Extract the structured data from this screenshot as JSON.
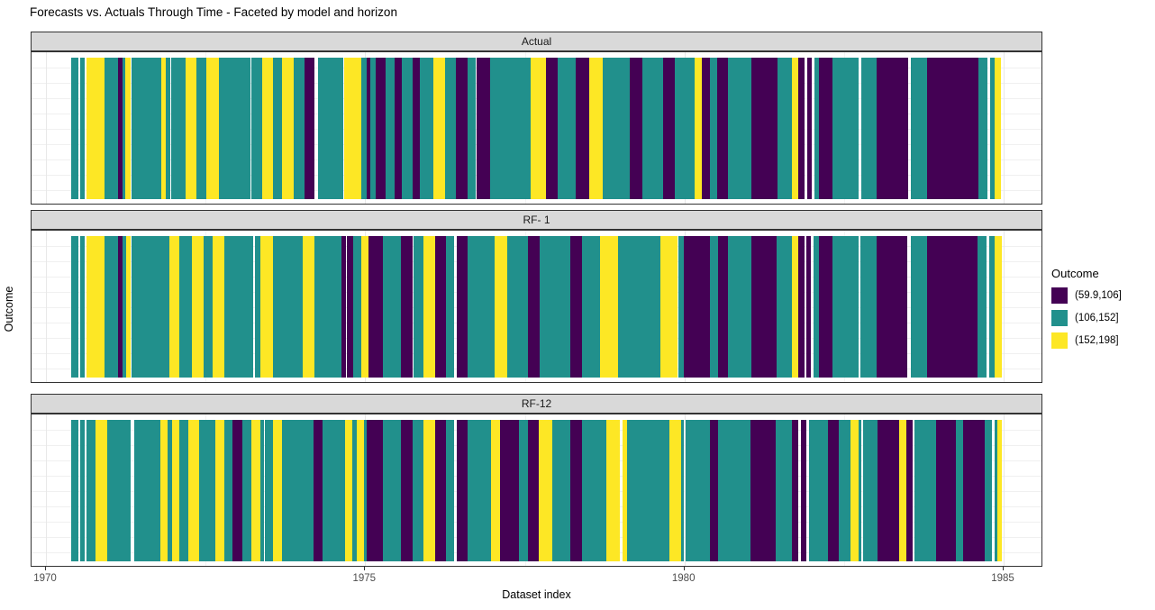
{
  "title": "Forecasts vs. Actuals Through Time - Faceted by model and horizon",
  "x_axis": {
    "label": "Dataset index",
    "ticks": [
      1970,
      1975,
      1980,
      1985
    ],
    "range": [
      1969.79,
      1985.62
    ]
  },
  "y_axis": {
    "label": "Outcome"
  },
  "legend": {
    "title": "Outcome",
    "entries": [
      {
        "key": "P",
        "label": "(59.9,106]",
        "color": "#440154"
      },
      {
        "key": "T",
        "label": "(106,152]",
        "color": "#21908C"
      },
      {
        "key": "Y",
        "label": "(152,198]",
        "color": "#FDE725"
      }
    ]
  },
  "style_colors": {
    "strip_bg": "#D9D9D9",
    "panel_border": "#333333",
    "grid_major": "#E8E8E8",
    "grid_minor": "#F4F4F4",
    "axis_text": "#4D4D4D"
  },
  "chart_data": {
    "type": "heatmap",
    "description": "Tile/strip timeline of binned Outcome values, faceted by model-horizon; each segment is [start_year, end_year, bin_key]",
    "x_domain": [
      1970.4,
      1985.0
    ],
    "bins": {
      "P": "(59.9,106]",
      "T": "(106,152]",
      "Y": "(152,198]"
    },
    "grid": "on",
    "legend_position": "right",
    "facets": [
      {
        "label": "Actual",
        "segments": [
          [
            1970.4,
            1970.51,
            "T"
          ],
          [
            1970.54,
            1970.61,
            "T"
          ],
          [
            1970.64,
            1970.92,
            "Y"
          ],
          [
            1970.92,
            1971.13,
            "T"
          ],
          [
            1971.13,
            1971.2,
            "P"
          ],
          [
            1971.2,
            1971.24,
            "T"
          ],
          [
            1971.24,
            1971.33,
            "Y"
          ],
          [
            1971.34,
            1971.81,
            "T"
          ],
          [
            1971.81,
            1971.88,
            "Y"
          ],
          [
            1971.88,
            1971.95,
            "T"
          ],
          [
            1971.96,
            1972.19,
            "T"
          ],
          [
            1972.19,
            1972.36,
            "Y"
          ],
          [
            1972.36,
            1972.51,
            "T"
          ],
          [
            1972.51,
            1972.71,
            "Y"
          ],
          [
            1972.71,
            1973.2,
            "T"
          ],
          [
            1973.22,
            1973.39,
            "T"
          ],
          [
            1973.39,
            1973.56,
            "Y"
          ],
          [
            1973.56,
            1973.7,
            "T"
          ],
          [
            1973.7,
            1973.88,
            "Y"
          ],
          [
            1973.88,
            1974.05,
            "T"
          ],
          [
            1974.05,
            1974.21,
            "P"
          ],
          [
            1974.26,
            1974.66,
            "T"
          ],
          [
            1974.67,
            1974.94,
            "Y"
          ],
          [
            1974.94,
            1975.02,
            "T"
          ],
          [
            1975.02,
            1975.08,
            "P"
          ],
          [
            1975.08,
            1975.16,
            "T"
          ],
          [
            1975.16,
            1975.32,
            "P"
          ],
          [
            1975.32,
            1975.46,
            "T"
          ],
          [
            1975.46,
            1975.57,
            "P"
          ],
          [
            1975.57,
            1975.74,
            "T"
          ],
          [
            1975.74,
            1975.86,
            "P"
          ],
          [
            1975.86,
            1976.07,
            "T"
          ],
          [
            1976.07,
            1976.25,
            "Y"
          ],
          [
            1976.25,
            1976.42,
            "T"
          ],
          [
            1976.42,
            1976.6,
            "P"
          ],
          [
            1976.6,
            1976.73,
            "T"
          ],
          [
            1976.75,
            1976.96,
            "P"
          ],
          [
            1976.96,
            1977.59,
            "T"
          ],
          [
            1977.59,
            1977.83,
            "Y"
          ],
          [
            1977.83,
            1978.02,
            "P"
          ],
          [
            1978.02,
            1978.3,
            "T"
          ],
          [
            1978.3,
            1978.51,
            "P"
          ],
          [
            1978.51,
            1978.72,
            "Y"
          ],
          [
            1978.72,
            1979.14,
            "T"
          ],
          [
            1979.14,
            1979.34,
            "P"
          ],
          [
            1979.34,
            1979.67,
            "T"
          ],
          [
            1979.67,
            1979.85,
            "P"
          ],
          [
            1979.85,
            1980.16,
            "T"
          ],
          [
            1980.16,
            1980.27,
            "Y"
          ],
          [
            1980.27,
            1980.4,
            "P"
          ],
          [
            1980.4,
            1980.51,
            "T"
          ],
          [
            1980.51,
            1980.68,
            "P"
          ],
          [
            1980.68,
            1981.05,
            "T"
          ],
          [
            1981.05,
            1981.46,
            "P"
          ],
          [
            1981.46,
            1981.68,
            "T"
          ],
          [
            1981.68,
            1981.78,
            "Y"
          ],
          [
            1981.78,
            1981.88,
            "P"
          ],
          [
            1981.92,
            1981.99,
            "P"
          ],
          [
            1982.04,
            1982.11,
            "T"
          ],
          [
            1982.11,
            1982.32,
            "P"
          ],
          [
            1982.32,
            1982.73,
            "T"
          ],
          [
            1982.77,
            1983.01,
            "T"
          ],
          [
            1983.01,
            1983.5,
            "P"
          ],
          [
            1983.55,
            1983.8,
            "T"
          ],
          [
            1983.8,
            1984.61,
            "P"
          ],
          [
            1984.61,
            1984.75,
            "T"
          ],
          [
            1984.79,
            1984.86,
            "T"
          ],
          [
            1984.86,
            1984.96,
            "Y"
          ]
        ]
      },
      {
        "label": "RF- 1",
        "segments": [
          [
            1970.4,
            1970.51,
            "T"
          ],
          [
            1970.54,
            1970.61,
            "T"
          ],
          [
            1970.64,
            1970.92,
            "Y"
          ],
          [
            1970.92,
            1971.13,
            "T"
          ],
          [
            1971.13,
            1971.2,
            "P"
          ],
          [
            1971.2,
            1971.26,
            "T"
          ],
          [
            1971.26,
            1971.33,
            "Y"
          ],
          [
            1971.34,
            1971.93,
            "T"
          ],
          [
            1971.93,
            1972.09,
            "Y"
          ],
          [
            1972.09,
            1972.29,
            "T"
          ],
          [
            1972.29,
            1972.47,
            "Y"
          ],
          [
            1972.47,
            1972.61,
            "T"
          ],
          [
            1972.61,
            1972.79,
            "Y"
          ],
          [
            1972.79,
            1973.25,
            "T"
          ],
          [
            1973.27,
            1973.36,
            "T"
          ],
          [
            1973.36,
            1973.56,
            "Y"
          ],
          [
            1973.56,
            1974.02,
            "T"
          ],
          [
            1974.02,
            1974.21,
            "Y"
          ],
          [
            1974.21,
            1974.63,
            "T"
          ],
          [
            1974.63,
            1974.7,
            "P"
          ],
          [
            1974.71,
            1974.81,
            "P"
          ],
          [
            1974.81,
            1974.94,
            "T"
          ],
          [
            1974.94,
            1975.05,
            "Y"
          ],
          [
            1975.05,
            1975.28,
            "P"
          ],
          [
            1975.28,
            1975.56,
            "T"
          ],
          [
            1975.56,
            1975.74,
            "P"
          ],
          [
            1975.76,
            1975.91,
            "T"
          ],
          [
            1975.91,
            1976.1,
            "Y"
          ],
          [
            1976.1,
            1976.27,
            "P"
          ],
          [
            1976.27,
            1976.39,
            "T"
          ],
          [
            1976.43,
            1976.6,
            "P"
          ],
          [
            1976.6,
            1977.03,
            "T"
          ],
          [
            1977.03,
            1977.23,
            "Y"
          ],
          [
            1977.23,
            1977.55,
            "T"
          ],
          [
            1977.55,
            1977.73,
            "P"
          ],
          [
            1977.73,
            1978.21,
            "T"
          ],
          [
            1978.21,
            1978.4,
            "P"
          ],
          [
            1978.4,
            1978.68,
            "T"
          ],
          [
            1978.68,
            1978.96,
            "Y"
          ],
          [
            1978.96,
            1979.62,
            "T"
          ],
          [
            1979.62,
            1979.9,
            "Y"
          ],
          [
            1979.9,
            1979.99,
            "T"
          ],
          [
            1979.99,
            1980.4,
            "P"
          ],
          [
            1980.4,
            1980.53,
            "T"
          ],
          [
            1980.53,
            1980.68,
            "P"
          ],
          [
            1980.68,
            1981.05,
            "T"
          ],
          [
            1981.05,
            1981.44,
            "P"
          ],
          [
            1981.44,
            1981.68,
            "T"
          ],
          [
            1981.68,
            1981.78,
            "Y"
          ],
          [
            1981.78,
            1981.88,
            "P"
          ],
          [
            1981.91,
            1981.98,
            "P"
          ],
          [
            1982.02,
            1982.11,
            "T"
          ],
          [
            1982.11,
            1982.32,
            "P"
          ],
          [
            1982.32,
            1982.73,
            "T"
          ],
          [
            1982.76,
            1983.01,
            "T"
          ],
          [
            1983.01,
            1983.49,
            "P"
          ],
          [
            1983.55,
            1983.8,
            "T"
          ],
          [
            1983.8,
            1984.59,
            "P"
          ],
          [
            1984.59,
            1984.73,
            "T"
          ],
          [
            1984.77,
            1984.86,
            "T"
          ],
          [
            1984.86,
            1984.97,
            "Y"
          ]
        ]
      },
      {
        "label": "RF-12",
        "segments": [
          [
            1970.4,
            1970.51,
            "T"
          ],
          [
            1970.54,
            1970.61,
            "T"
          ],
          [
            1970.64,
            1970.78,
            "T"
          ],
          [
            1970.78,
            1970.96,
            "Y"
          ],
          [
            1970.96,
            1971.33,
            "T"
          ],
          [
            1971.38,
            1971.79,
            "T"
          ],
          [
            1971.79,
            1971.9,
            "Y"
          ],
          [
            1971.9,
            1971.98,
            "T"
          ],
          [
            1971.98,
            1972.09,
            "Y"
          ],
          [
            1972.09,
            1972.23,
            "T"
          ],
          [
            1972.23,
            1972.4,
            "Y"
          ],
          [
            1972.4,
            1972.65,
            "T"
          ],
          [
            1972.65,
            1972.79,
            "Y"
          ],
          [
            1972.79,
            1972.92,
            "T"
          ],
          [
            1972.92,
            1973.08,
            "P"
          ],
          [
            1973.08,
            1973.22,
            "T"
          ],
          [
            1973.22,
            1973.36,
            "Y"
          ],
          [
            1973.36,
            1973.41,
            "T"
          ],
          [
            1973.43,
            1973.56,
            "T"
          ],
          [
            1973.56,
            1973.7,
            "Y"
          ],
          [
            1973.7,
            1974.19,
            "T"
          ],
          [
            1974.19,
            1974.33,
            "P"
          ],
          [
            1974.33,
            1974.69,
            "T"
          ],
          [
            1974.69,
            1974.8,
            "Y"
          ],
          [
            1974.8,
            1974.87,
            "T"
          ],
          [
            1974.87,
            1974.98,
            "Y"
          ],
          [
            1974.98,
            1975.02,
            "T"
          ],
          [
            1975.02,
            1975.28,
            "P"
          ],
          [
            1975.28,
            1975.56,
            "T"
          ],
          [
            1975.56,
            1975.74,
            "P"
          ],
          [
            1975.74,
            1975.91,
            "T"
          ],
          [
            1975.91,
            1976.1,
            "Y"
          ],
          [
            1976.1,
            1976.27,
            "P"
          ],
          [
            1976.27,
            1976.39,
            "T"
          ],
          [
            1976.43,
            1976.6,
            "P"
          ],
          [
            1976.6,
            1976.97,
            "T"
          ],
          [
            1976.97,
            1977.11,
            "Y"
          ],
          [
            1977.11,
            1977.41,
            "P"
          ],
          [
            1977.41,
            1977.55,
            "T"
          ],
          [
            1977.55,
            1977.72,
            "P"
          ],
          [
            1977.72,
            1977.93,
            "Y"
          ],
          [
            1977.93,
            1978.21,
            "T"
          ],
          [
            1978.21,
            1978.4,
            "P"
          ],
          [
            1978.4,
            1978.78,
            "T"
          ],
          [
            1978.78,
            1978.99,
            "Y"
          ],
          [
            1979.03,
            1979.1,
            "Y"
          ],
          [
            1979.1,
            1979.77,
            "T"
          ],
          [
            1979.77,
            1979.95,
            "Y"
          ],
          [
            1979.95,
            1979.99,
            "T"
          ],
          [
            1980.02,
            1980.4,
            "T"
          ],
          [
            1980.4,
            1980.53,
            "P"
          ],
          [
            1980.53,
            1981.03,
            "T"
          ],
          [
            1981.03,
            1981.43,
            "P"
          ],
          [
            1981.43,
            1981.68,
            "T"
          ],
          [
            1981.68,
            1981.78,
            "P"
          ],
          [
            1981.82,
            1981.91,
            "P"
          ],
          [
            1981.95,
            1982.25,
            "T"
          ],
          [
            1982.25,
            1982.42,
            "P"
          ],
          [
            1982.42,
            1982.6,
            "T"
          ],
          [
            1982.6,
            1982.73,
            "Y"
          ],
          [
            1982.73,
            1982.77,
            "T"
          ],
          [
            1982.8,
            1983.02,
            "T"
          ],
          [
            1983.02,
            1983.36,
            "P"
          ],
          [
            1983.36,
            1983.47,
            "Y"
          ],
          [
            1983.47,
            1983.57,
            "P"
          ],
          [
            1983.6,
            1983.94,
            "T"
          ],
          [
            1983.94,
            1984.25,
            "P"
          ],
          [
            1984.25,
            1984.36,
            "T"
          ],
          [
            1984.36,
            1984.7,
            "P"
          ],
          [
            1984.7,
            1984.82,
            "T"
          ],
          [
            1984.86,
            1984.9,
            "T"
          ],
          [
            1984.9,
            1984.97,
            "Y"
          ]
        ]
      }
    ]
  }
}
